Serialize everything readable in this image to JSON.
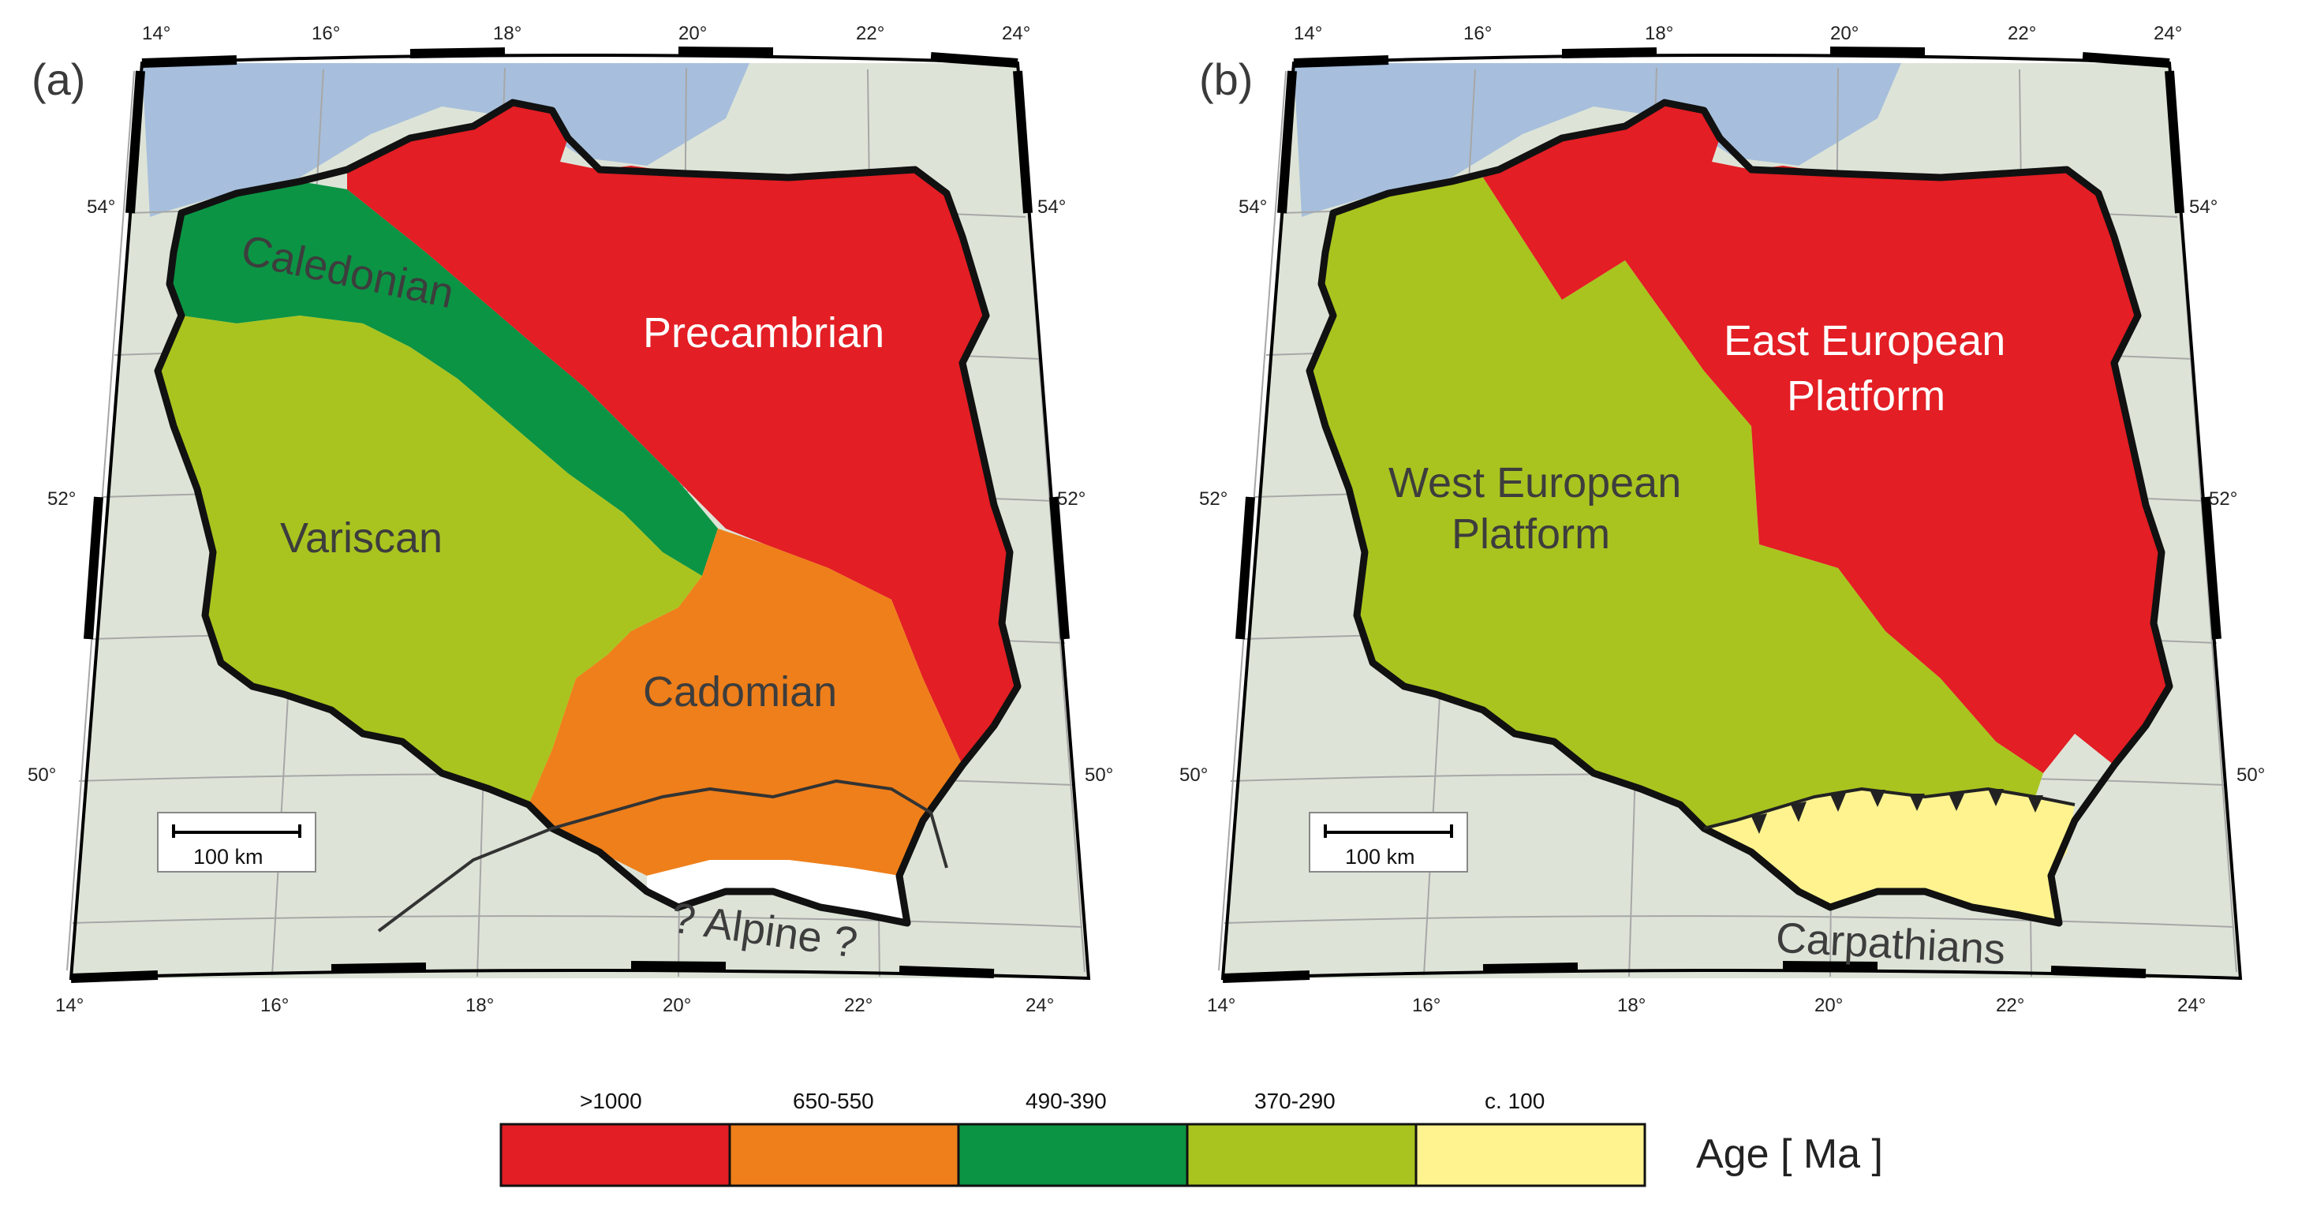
{
  "panel_a": {
    "letter": "(a)",
    "labels": {
      "caledonian": "Caledonian",
      "precambrian": "Precambrian",
      "variscan": "Variscan",
      "cadomian": "Cadomian",
      "alpine": "? Alpine ?"
    },
    "scale_bar": "100 km",
    "top_lon": [
      "14°",
      "16°",
      "18°",
      "20°",
      "22°",
      "24°"
    ],
    "bottom_lon": [
      "14°",
      "16°",
      "18°",
      "20°",
      "22°",
      "24°"
    ],
    "left_lat": [
      "54°",
      "52°",
      "50°"
    ],
    "right_lat": [
      "54°",
      "52°",
      "50°"
    ]
  },
  "panel_b": {
    "letter": "(b)",
    "labels": {
      "east_line1": "East European",
      "east_line2": "Platform",
      "west_line1": "West European",
      "west_line2": "Platform",
      "carpathians": "Carpathians"
    },
    "scale_bar": "100 km",
    "top_lon": [
      "14°",
      "16°",
      "18°",
      "20°",
      "22°",
      "24°"
    ],
    "bottom_lon": [
      "14°",
      "16°",
      "18°",
      "20°",
      "22°",
      "24°"
    ],
    "left_lat": [
      "54°",
      "52°",
      "50°"
    ],
    "right_lat": [
      "54°",
      "52°",
      "50°"
    ]
  },
  "legend": {
    "title": "Age  [ Ma ]",
    "items": [
      {
        "label": ">1000",
        "color": "#e31e24"
      },
      {
        "label": "650-550",
        "color": "#ef7f1a"
      },
      {
        "label": "490-390",
        "color": "#0b9444"
      },
      {
        "label": "370-290",
        "color": "#a9c41f"
      },
      {
        "label": "c. 100",
        "color": "#fff38f"
      }
    ]
  },
  "colors": {
    "sea": "#a7bfdc",
    "land_background": "#dde4d7",
    "alpine_zone": "#ffffff"
  }
}
